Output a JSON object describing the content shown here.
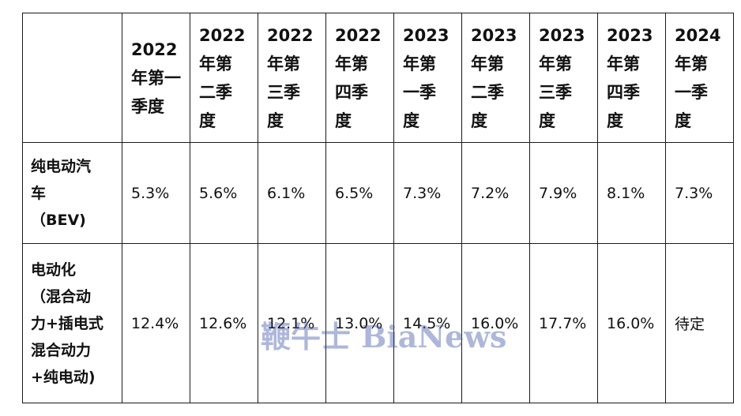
{
  "table": {
    "headers": [
      "",
      "2022\n年第一\n季度",
      "2022\n年第\n二季\n度",
      "2022\n年第\n三季\n度",
      "2022\n年第\n四季\n度",
      "2023\n年第\n一季\n度",
      "2023\n年第\n二季\n度",
      "2023\n年第\n三季\n度",
      "2023\n年第\n四季\n度",
      "2024\n年第\n一季\n度"
    ],
    "rows": [
      {
        "label": "纯电动汽\n车\n（BEV)",
        "values": [
          "5.3%",
          "5.6%",
          "6.1%",
          "6.5%",
          "7.3%",
          "7.2%",
          "7.9%",
          "8.1%",
          "7.3%"
        ]
      },
      {
        "label": "电动化\n（混合动\n力+插电式\n混合动力\n+纯电动)",
        "values": [
          "12.4%",
          "12.6%",
          "12.1%",
          "13.0%",
          "14.5%",
          "16.0%",
          "17.7%",
          "16.0%",
          "待定"
        ]
      }
    ]
  },
  "watermark": "鞭牛士 BiaNews"
}
